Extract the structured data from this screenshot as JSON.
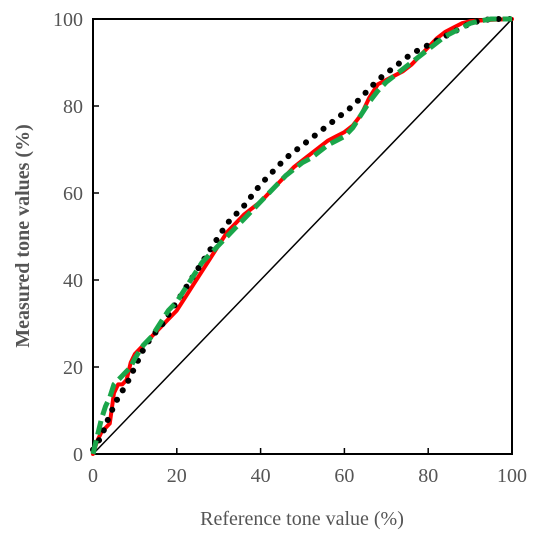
{
  "chart_data": {
    "type": "line",
    "xlabel": "Reference tone value  (%)",
    "ylabel": "Measured tone values (%)",
    "xlim": [
      0,
      100
    ],
    "ylim": [
      0,
      100
    ],
    "x_ticks": [
      "0",
      "20",
      "40",
      "60",
      "80",
      "100"
    ],
    "y_ticks": [
      "0",
      "20",
      "40",
      "60",
      "80",
      "100"
    ],
    "grid": false,
    "legend": "none",
    "series": [
      {
        "style": "solid",
        "color": "#000000",
        "points": [
          [
            0,
            0
          ],
          [
            100,
            100
          ]
        ]
      },
      {
        "style": "solid",
        "color": "#ff0000",
        "points": [
          [
            0,
            0
          ],
          [
            1,
            3
          ],
          [
            2,
            5
          ],
          [
            3,
            6
          ],
          [
            4,
            7
          ],
          [
            5,
            14
          ],
          [
            6,
            16
          ],
          [
            7,
            16
          ],
          [
            8,
            17
          ],
          [
            9,
            21
          ],
          [
            10,
            23
          ],
          [
            12,
            25
          ],
          [
            14,
            27
          ],
          [
            16,
            29
          ],
          [
            18,
            31
          ],
          [
            20,
            33
          ],
          [
            22,
            36
          ],
          [
            24,
            39
          ],
          [
            26,
            42
          ],
          [
            28,
            45
          ],
          [
            30,
            48
          ],
          [
            32,
            51
          ],
          [
            34,
            53
          ],
          [
            36,
            55
          ],
          [
            38,
            56.5
          ],
          [
            40,
            58
          ],
          [
            42,
            60
          ],
          [
            44,
            62
          ],
          [
            46,
            64
          ],
          [
            48,
            66
          ],
          [
            50,
            67.5
          ],
          [
            52,
            69
          ],
          [
            54,
            70.5
          ],
          [
            56,
            72
          ],
          [
            58,
            73
          ],
          [
            60,
            74
          ],
          [
            62,
            75.5
          ],
          [
            64,
            78
          ],
          [
            66,
            82
          ],
          [
            68,
            85
          ],
          [
            70,
            86
          ],
          [
            72,
            87
          ],
          [
            74,
            88
          ],
          [
            76,
            89.5
          ],
          [
            78,
            91.5
          ],
          [
            80,
            93.5
          ],
          [
            82,
            95.5
          ],
          [
            84,
            97
          ],
          [
            86,
            98
          ],
          [
            88,
            99
          ],
          [
            90,
            99.5
          ],
          [
            95,
            99.8
          ],
          [
            100,
            100
          ]
        ]
      },
      {
        "style": "dotted",
        "color": "#000000",
        "points": [
          [
            0,
            1
          ],
          [
            2,
            4
          ],
          [
            4,
            9
          ],
          [
            6,
            13
          ],
          [
            8,
            16
          ],
          [
            10,
            20
          ],
          [
            12,
            24
          ],
          [
            14,
            27
          ],
          [
            16,
            29
          ],
          [
            18,
            32
          ],
          [
            20,
            35
          ],
          [
            22,
            38
          ],
          [
            24,
            41
          ],
          [
            26,
            44
          ],
          [
            28,
            47
          ],
          [
            30,
            50
          ],
          [
            32,
            53
          ],
          [
            34,
            55
          ],
          [
            36,
            57
          ],
          [
            38,
            59.5
          ],
          [
            40,
            62
          ],
          [
            42,
            64
          ],
          [
            44,
            66
          ],
          [
            46,
            68
          ],
          [
            48,
            69.5
          ],
          [
            50,
            71
          ],
          [
            52,
            72.5
          ],
          [
            54,
            74
          ],
          [
            56,
            75.5
          ],
          [
            58,
            77
          ],
          [
            60,
            78.5
          ],
          [
            62,
            80
          ],
          [
            64,
            82
          ],
          [
            66,
            84
          ],
          [
            68,
            86
          ],
          [
            70,
            87.5
          ],
          [
            72,
            89
          ],
          [
            74,
            90.5
          ],
          [
            76,
            92
          ],
          [
            78,
            93
          ],
          [
            80,
            94
          ],
          [
            82,
            95
          ],
          [
            84,
            96
          ],
          [
            86,
            97
          ],
          [
            88,
            98
          ],
          [
            90,
            99
          ],
          [
            92,
            99.5
          ],
          [
            95,
            100
          ],
          [
            100,
            100
          ]
        ]
      },
      {
        "style": "dashed",
        "color": "#1aa64a",
        "points": [
          [
            0,
            0
          ],
          [
            1,
            4
          ],
          [
            2,
            8
          ],
          [
            3,
            11
          ],
          [
            4,
            13
          ],
          [
            5,
            16
          ],
          [
            6,
            17
          ],
          [
            7,
            18
          ],
          [
            8,
            19
          ],
          [
            9,
            20
          ],
          [
            10,
            22
          ],
          [
            12,
            25
          ],
          [
            14,
            27
          ],
          [
            16,
            30
          ],
          [
            18,
            33
          ],
          [
            20,
            35
          ],
          [
            22,
            38
          ],
          [
            24,
            41
          ],
          [
            26,
            44
          ],
          [
            28,
            46
          ],
          [
            30,
            48
          ],
          [
            32,
            50
          ],
          [
            34,
            52
          ],
          [
            36,
            54
          ],
          [
            38,
            56
          ],
          [
            40,
            58
          ],
          [
            42,
            60
          ],
          [
            44,
            62
          ],
          [
            46,
            64
          ],
          [
            48,
            65.5
          ],
          [
            50,
            67
          ],
          [
            52,
            68
          ],
          [
            54,
            69.5
          ],
          [
            56,
            71
          ],
          [
            58,
            72
          ],
          [
            60,
            73
          ],
          [
            62,
            75
          ],
          [
            64,
            78
          ],
          [
            66,
            81
          ],
          [
            68,
            83.5
          ],
          [
            70,
            85.5
          ],
          [
            72,
            87
          ],
          [
            74,
            88.5
          ],
          [
            76,
            90
          ],
          [
            78,
            91.5
          ],
          [
            80,
            93
          ],
          [
            82,
            94.5
          ],
          [
            84,
            96
          ],
          [
            86,
            97
          ],
          [
            88,
            98
          ],
          [
            90,
            99
          ],
          [
            92,
            99.5
          ],
          [
            95,
            100
          ],
          [
            100,
            100
          ]
        ]
      }
    ]
  }
}
